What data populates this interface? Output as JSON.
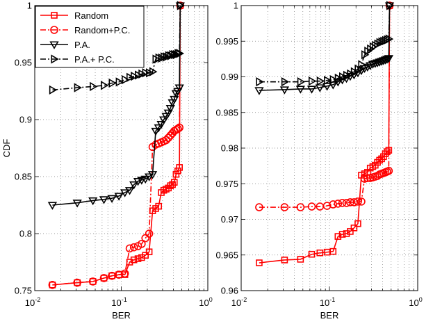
{
  "chart_data": [
    {
      "type": "line",
      "panel": "left",
      "xscale": "log",
      "xlim": [
        0.01,
        1
      ],
      "ylim": [
        0.75,
        1.0
      ],
      "xlabel": "BER",
      "ylabel": "CDF",
      "xticks": [
        0.01,
        0.1,
        1
      ],
      "xtick_labels": [
        {
          "base": "10",
          "exp": "-2"
        },
        {
          "base": "10",
          "exp": "-1"
        },
        {
          "base": "10",
          "exp": "0"
        }
      ],
      "yticks": [
        0.75,
        0.8,
        0.85,
        0.9,
        0.95,
        1.0
      ],
      "ytick_labels": [
        "0.75",
        "0.8",
        "0.85",
        "0.9",
        "0.95",
        "1"
      ],
      "grid": true,
      "legend": {
        "location": "top-left",
        "entries": [
          "Random",
          "Random+P.C.",
          "P.A.",
          "P.A.+ P.C."
        ]
      },
      "series": [
        {
          "name": "Random",
          "color": "#ff0000",
          "marker": "square",
          "linestyle": "solid",
          "x": [
            0.016,
            0.031,
            0.047,
            0.063,
            0.078,
            0.094,
            0.11,
            0.125,
            0.14,
            0.156,
            0.172,
            0.19,
            0.21,
            0.23,
            0.25,
            0.27,
            0.29,
            0.31,
            0.33,
            0.35,
            0.37,
            0.39,
            0.41,
            0.43,
            0.45,
            0.47,
            0.48
          ],
          "y": [
            0.755,
            0.757,
            0.758,
            0.761,
            0.763,
            0.764,
            0.764,
            0.775,
            0.777,
            0.778,
            0.779,
            0.781,
            0.784,
            0.82,
            0.822,
            0.824,
            0.836,
            0.838,
            0.839,
            0.84,
            0.842,
            0.843,
            0.845,
            0.852,
            0.855,
            0.858,
            1.0
          ]
        },
        {
          "name": "Random+P.C.",
          "color": "#ff0000",
          "marker": "circle",
          "linestyle": "dashdot",
          "x": [
            0.016,
            0.031,
            0.047,
            0.063,
            0.078,
            0.094,
            0.11,
            0.125,
            0.14,
            0.156,
            0.172,
            0.19,
            0.21,
            0.23,
            0.25,
            0.27,
            0.29,
            0.31,
            0.33,
            0.35,
            0.37,
            0.39,
            0.41,
            0.43,
            0.45,
            0.47,
            0.48
          ],
          "y": [
            0.755,
            0.757,
            0.758,
            0.761,
            0.763,
            0.764,
            0.765,
            0.787,
            0.788,
            0.789,
            0.791,
            0.796,
            0.8,
            0.876,
            0.878,
            0.879,
            0.88,
            0.881,
            0.882,
            0.884,
            0.886,
            0.888,
            0.89,
            0.891,
            0.892,
            0.893,
            1.0
          ]
        },
        {
          "name": "P.A.",
          "color": "#000000",
          "marker": "triangle-down",
          "linestyle": "solid",
          "x": [
            0.016,
            0.031,
            0.047,
            0.063,
            0.078,
            0.094,
            0.11,
            0.125,
            0.14,
            0.156,
            0.172,
            0.19,
            0.21,
            0.23,
            0.25,
            0.27,
            0.29,
            0.31,
            0.33,
            0.35,
            0.37,
            0.39,
            0.41,
            0.43,
            0.45,
            0.47,
            0.48
          ],
          "y": [
            0.825,
            0.827,
            0.829,
            0.83,
            0.831,
            0.833,
            0.836,
            0.838,
            0.843,
            0.846,
            0.847,
            0.848,
            0.85,
            0.852,
            0.89,
            0.893,
            0.896,
            0.9,
            0.903,
            0.906,
            0.91,
            0.915,
            0.918,
            0.923,
            0.925,
            0.928,
            1.0
          ]
        },
        {
          "name": "P.A.+ P.C.",
          "color": "#000000",
          "marker": "triangle-right",
          "linestyle": "dashdot",
          "x": [
            0.016,
            0.031,
            0.047,
            0.063,
            0.078,
            0.094,
            0.11,
            0.125,
            0.14,
            0.156,
            0.172,
            0.19,
            0.21,
            0.23,
            0.25,
            0.27,
            0.29,
            0.31,
            0.33,
            0.35,
            0.37,
            0.39,
            0.41,
            0.43,
            0.45,
            0.47,
            0.48
          ],
          "y": [
            0.926,
            0.928,
            0.929,
            0.93,
            0.932,
            0.933,
            0.935,
            0.937,
            0.938,
            0.939,
            0.94,
            0.941,
            0.941,
            0.942,
            0.953,
            0.954,
            0.954,
            0.955,
            0.955,
            0.956,
            0.956,
            0.957,
            0.957,
            0.957,
            0.958,
            0.958,
            1.0
          ]
        }
      ]
    },
    {
      "type": "line",
      "panel": "right",
      "xscale": "log",
      "xlim": [
        0.01,
        1
      ],
      "ylim": [
        0.96,
        1.0
      ],
      "xlabel": "BER",
      "ylabel": "",
      "xticks": [
        0.01,
        0.1,
        1
      ],
      "xtick_labels": [
        {
          "base": "10",
          "exp": "-2"
        },
        {
          "base": "10",
          "exp": "-1"
        },
        {
          "base": "10",
          "exp": "0"
        }
      ],
      "yticks": [
        0.96,
        0.965,
        0.97,
        0.975,
        0.98,
        0.985,
        0.99,
        0.995,
        1.0
      ],
      "ytick_labels": [
        "0.96",
        "0.965",
        "0.97",
        "0.975",
        "0.98",
        "0.985",
        "0.99",
        "0.995",
        "1"
      ],
      "grid": true,
      "series": [
        {
          "name": "Random",
          "color": "#ff0000",
          "marker": "square",
          "linestyle": "solid",
          "x": [
            0.016,
            0.031,
            0.047,
            0.063,
            0.078,
            0.094,
            0.11,
            0.125,
            0.14,
            0.156,
            0.172,
            0.19,
            0.21,
            0.23,
            0.25,
            0.27,
            0.29,
            0.31,
            0.33,
            0.35,
            0.37,
            0.39,
            0.41,
            0.43,
            0.45,
            0.47,
            0.48
          ],
          "y": [
            0.9639,
            0.9643,
            0.9644,
            0.9651,
            0.9653,
            0.9654,
            0.9655,
            0.9676,
            0.9679,
            0.968,
            0.9683,
            0.9688,
            0.9694,
            0.9762,
            0.9764,
            0.9766,
            0.9772,
            0.9774,
            0.9776,
            0.978,
            0.9783,
            0.9785,
            0.9788,
            0.9792,
            0.9795,
            0.9797,
            1.0
          ]
        },
        {
          "name": "Random+P.C.",
          "color": "#ff0000",
          "marker": "circle",
          "linestyle": "dashdot",
          "x": [
            0.016,
            0.031,
            0.047,
            0.063,
            0.078,
            0.094,
            0.11,
            0.125,
            0.14,
            0.156,
            0.172,
            0.19,
            0.21,
            0.23,
            0.25,
            0.27,
            0.29,
            0.31,
            0.33,
            0.35,
            0.37,
            0.39,
            0.41,
            0.43,
            0.45,
            0.47,
            0.48
          ],
          "y": [
            0.9717,
            0.9717,
            0.9717,
            0.9718,
            0.9718,
            0.9719,
            0.9721,
            0.9722,
            0.9723,
            0.9723,
            0.9724,
            0.9724,
            0.9725,
            0.9725,
            0.9757,
            0.9758,
            0.9758,
            0.9759,
            0.976,
            0.9761,
            0.9763,
            0.9764,
            0.9765,
            0.9766,
            0.9767,
            0.9768,
            1.0
          ]
        },
        {
          "name": "P.A.",
          "color": "#000000",
          "marker": "triangle-down",
          "linestyle": "solid",
          "x": [
            0.016,
            0.031,
            0.047,
            0.063,
            0.078,
            0.094,
            0.11,
            0.125,
            0.14,
            0.156,
            0.172,
            0.19,
            0.21,
            0.23,
            0.25,
            0.27,
            0.29,
            0.31,
            0.33,
            0.35,
            0.37,
            0.39,
            0.41,
            0.43,
            0.45,
            0.47,
            0.48
          ],
          "y": [
            0.9881,
            0.9882,
            0.9883,
            0.9883,
            0.9885,
            0.9887,
            0.9889,
            0.9893,
            0.9896,
            0.9898,
            0.9901,
            0.9903,
            0.9906,
            0.9909,
            0.9912,
            0.9914,
            0.9916,
            0.9918,
            0.9919,
            0.992,
            0.9921,
            0.9922,
            0.9923,
            0.9924,
            0.9925,
            0.9926,
            1.0
          ]
        },
        {
          "name": "P.A.+ P.C.",
          "color": "#000000",
          "marker": "triangle-right",
          "linestyle": "dashdot",
          "x": [
            0.016,
            0.031,
            0.047,
            0.063,
            0.078,
            0.094,
            0.11,
            0.125,
            0.14,
            0.156,
            0.172,
            0.19,
            0.21,
            0.23,
            0.25,
            0.27,
            0.29,
            0.31,
            0.33,
            0.35,
            0.37,
            0.39,
            0.41,
            0.43,
            0.45,
            0.47,
            0.48
          ],
          "y": [
            0.9893,
            0.9893,
            0.9893,
            0.9894,
            0.9894,
            0.9895,
            0.9896,
            0.9898,
            0.99,
            0.9902,
            0.9904,
            0.9907,
            0.9911,
            0.9917,
            0.9931,
            0.9936,
            0.9939,
            0.9942,
            0.9944,
            0.9946,
            0.9948,
            0.9949,
            0.995,
            0.9951,
            0.9952,
            0.9953,
            1.0
          ]
        }
      ]
    }
  ]
}
